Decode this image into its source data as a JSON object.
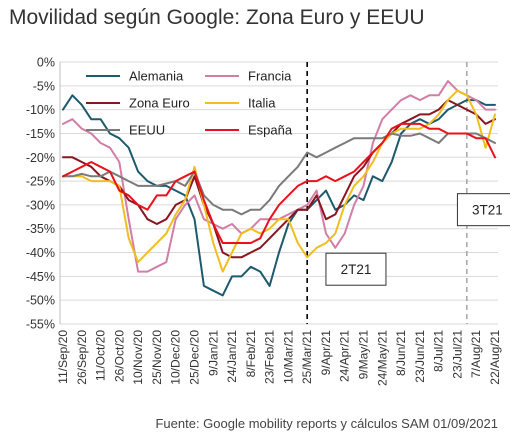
{
  "chart_data": {
    "type": "line",
    "title": "Movilidad según Google: Zona Euro y EEUU",
    "source": "Fuente: Google mobility reports  y cálculos SAM 01/09/2021",
    "ylim": [
      -55,
      0
    ],
    "y_ticks": [
      0,
      -5,
      -10,
      -15,
      -20,
      -25,
      -30,
      -35,
      -40,
      -45,
      -50,
      -55
    ],
    "y_tick_labels": [
      "0%",
      "-5%",
      "-10%",
      "-15%",
      "-20%",
      "-25%",
      "-30%",
      "-35%",
      "-40%",
      "-45%",
      "-50%",
      "-55%"
    ],
    "x": [
      "11/Sep/20",
      "18/Sep/20",
      "26/Sep/20",
      "4/Oct/20",
      "11/Oct/20",
      "19/Oct/20",
      "26/Oct/20",
      "3/Nov/20",
      "10/Nov/20",
      "18/Nov/20",
      "25/Nov/20",
      "3/Dec/20",
      "10/Dec/20",
      "18/Dec/20",
      "25/Dec/20",
      "2/Jan/21",
      "9/Jan/21",
      "17/Jan/21",
      "24/Jan/21",
      "1/Feb/21",
      "8/Feb/21",
      "16/Feb/21",
      "23/Feb/21",
      "3/Mar/21",
      "10/Mar/21",
      "18/Mar/21",
      "25/Mar/21",
      "1/Apr/21",
      "9/Apr/21",
      "16/Apr/21",
      "24/Apr/21",
      "1/May/21",
      "9/May/21",
      "16/May/21",
      "24/May/21",
      "31/May/21",
      "8/Jun/21",
      "15/Jun/21",
      "23/Jun/21",
      "30/Jun/21",
      "8/Jul/21",
      "15/Jul/21",
      "23/Jul/21",
      "30/Jul/21",
      "7/Aug/21",
      "14/Aug/21",
      "22/Aug/21"
    ],
    "x_tick_labels": [
      "11/Sep/20",
      "26/Sep/20",
      "11/Oct/20",
      "26/Oct/20",
      "10/Nov/20",
      "25/Nov/20",
      "10/Dec/20",
      "25/Dec/20",
      "9/Jan/21",
      "24/Jan/21",
      "8/Feb/21",
      "23/Feb/21",
      "10/Mar/21",
      "25/Mar/21",
      "9/Apr/21",
      "24/Apr/21",
      "9/May/21",
      "24/May/21",
      "8/Jun/21",
      "23/Jun/21",
      "8/Jul/21",
      "23/Jul/21",
      "7/Aug/21",
      "22/Aug/21"
    ],
    "series": [
      {
        "name": "Alemania",
        "color": "#1c5a6e",
        "values": [
          -10,
          -7,
          -9,
          -12,
          -12,
          -15,
          -16,
          -18,
          -23,
          -25,
          -26,
          -26,
          -27,
          -28,
          -33,
          -47,
          -48,
          -49,
          -45,
          -45,
          -43,
          -44,
          -47,
          -40,
          -34,
          -31,
          -31,
          -29,
          -27,
          -31,
          -30,
          -28,
          -29,
          -24,
          -25,
          -21,
          -15,
          -13,
          -12,
          -13,
          -12,
          -10,
          -9,
          -8,
          -8,
          -9,
          -9
        ]
      },
      {
        "name": "Francia",
        "color": "#d27ea6",
        "values": [
          -13,
          -12,
          -14,
          -15,
          -17,
          -18,
          -21,
          -33,
          -44,
          -44,
          -43,
          -42,
          -33,
          -30,
          -28,
          -33,
          -34,
          -35,
          -34,
          -36,
          -35,
          -33,
          -33,
          -33,
          -32,
          -31,
          -30,
          -27,
          -36,
          -39,
          -36,
          -30,
          -26,
          -17,
          -12,
          -10,
          -8,
          -7,
          -8,
          -7,
          -7,
          -4,
          -6,
          -7,
          -8,
          -10,
          -10
        ]
      },
      {
        "name": "Zona Euro",
        "color": "#8a1520",
        "values": [
          -20,
          -20,
          -21,
          -22,
          -24,
          -25,
          -26,
          -29,
          -30,
          -33,
          -34,
          -33,
          -30,
          -29,
          -24,
          -30,
          -34,
          -40,
          -41,
          -41,
          -40,
          -39,
          -37,
          -35,
          -33,
          -31,
          -31,
          -28,
          -33,
          -32,
          -28,
          -24,
          -22,
          -19,
          -17,
          -15,
          -13,
          -12,
          -11,
          -11,
          -10,
          -8,
          -9,
          -10,
          -11,
          -13,
          -12
        ]
      },
      {
        "name": "Italia",
        "color": "#f0be1e",
        "values": [
          -24,
          -24,
          -24,
          -25,
          -25,
          -25,
          -26,
          -37,
          -42,
          -40,
          -38,
          -36,
          -32,
          -29,
          -22,
          -30,
          -38,
          -44,
          -40,
          -36,
          -35,
          -36,
          -35,
          -33,
          -33,
          -38,
          -41,
          -39,
          -38,
          -36,
          -30,
          -26,
          -24,
          -21,
          -17,
          -15,
          -14,
          -14,
          -14,
          -13,
          -11,
          -8,
          -6,
          -7,
          -11,
          -18,
          -11
        ]
      },
      {
        "name": "EEUU",
        "color": "#7a7a7a",
        "values": [
          -24,
          -24,
          -23.5,
          -24,
          -24,
          -23,
          -24,
          -25,
          -26,
          -26,
          -26,
          -25.5,
          -25,
          -26,
          -23,
          -28,
          -30,
          -31,
          -31,
          -32,
          -31,
          -31,
          -29,
          -26,
          -24,
          -22,
          -19,
          -20,
          -19,
          -18,
          -17,
          -16,
          -16,
          -16,
          -16,
          -15,
          -15.5,
          -15.5,
          -15,
          -16,
          -17,
          -15,
          -15,
          -15,
          -15,
          -16,
          -17
        ]
      },
      {
        "name": "España",
        "color": "#e8111c",
        "values": [
          -24,
          -23,
          -22,
          -21,
          -22,
          -23,
          -27,
          -28,
          -30,
          -31,
          -28,
          -28,
          -25,
          -24,
          -23,
          -29,
          -34,
          -38,
          -38,
          -38,
          -38,
          -37,
          -33,
          -30,
          -28,
          -26,
          -25,
          -25,
          -24,
          -25,
          -24,
          -23,
          -21,
          -19,
          -17,
          -14,
          -13,
          -13,
          -13,
          -14,
          -14,
          -15,
          -15,
          -15,
          -16,
          -16,
          -20
        ]
      }
    ],
    "legend": {
      "placement": "top-left",
      "columns": 2
    },
    "vlines": [
      {
        "x": "25/Mar/21",
        "style": "dashed",
        "color": "#000000"
      },
      {
        "x": "30/Jul/21",
        "style": "dashed",
        "color": "#aaaaaa"
      }
    ],
    "annotations": [
      {
        "text": "2T21",
        "anchor": "9/Apr/21",
        "y": -43.5
      },
      {
        "text": "3T21",
        "anchor": "23/Jul/21",
        "y": -31
      }
    ],
    "grid": true
  }
}
